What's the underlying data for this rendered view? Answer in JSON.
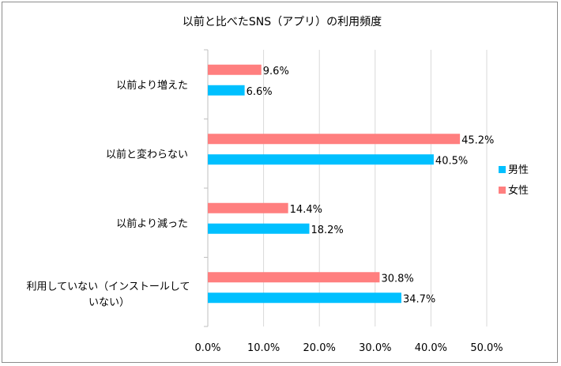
{
  "chart_data": {
    "type": "bar",
    "orientation": "horizontal",
    "title": "以前と比べたSNS（アプリ）の利用頻度",
    "categories": [
      "以前より増えた",
      "以前と変わらない",
      "以前より減った",
      "利用していない（インストールして\nいない）"
    ],
    "series": [
      {
        "name": "男性",
        "color": "#00c0ff",
        "values": [
          6.6,
          40.5,
          18.2,
          34.7
        ]
      },
      {
        "name": "女性",
        "color": "#ff7f7f",
        "values": [
          9.6,
          45.2,
          14.4,
          30.8
        ]
      }
    ],
    "xlim": [
      0,
      50
    ],
    "xticks": [
      0,
      10,
      20,
      30,
      40,
      50
    ],
    "tick_format": "percent_1dp",
    "value_format": "percent_1dp",
    "grid": true,
    "legend": "right"
  }
}
